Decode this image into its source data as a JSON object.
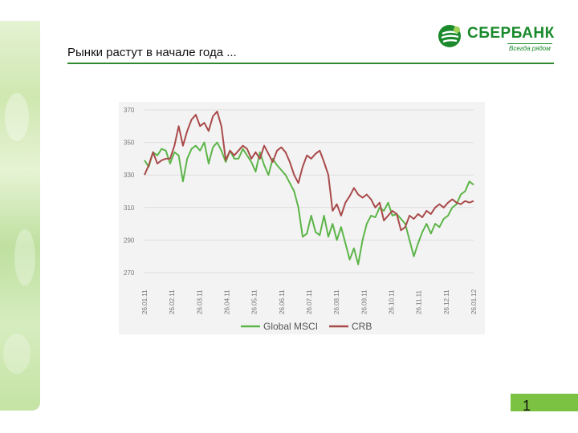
{
  "slide": {
    "title": "Рынки растут в начале года ...",
    "page_number": "1"
  },
  "logo": {
    "name": "СБЕРБАНК",
    "slogan": "Всегда рядом",
    "icon": "sberbank-logo-icon"
  },
  "colors": {
    "accent_green": "#1a8a2c",
    "page_badge": "#7cc242",
    "series_green": "#5cb548",
    "series_red": "#a94a4a"
  },
  "chart_data": {
    "type": "line",
    "title": "",
    "xlabel": "",
    "ylabel": "",
    "ylim": [
      270,
      370
    ],
    "yticks": [
      270,
      290,
      310,
      330,
      350,
      370
    ],
    "x_tick_labels": [
      "26.01.11",
      "26.02.11",
      "26.03.11",
      "26.04.11",
      "26.05.11",
      "26.06.11",
      "26.07.11",
      "26.08.11",
      "26.09.11",
      "26.10.11",
      "26.11.11",
      "26.12.11",
      "26.01.12"
    ],
    "grid": true,
    "legend_position": "bottom",
    "series": [
      {
        "name": "Global MSCI",
        "color": "#5cb548",
        "values": [
          339,
          335,
          344,
          342,
          346,
          345,
          337,
          344,
          342,
          326,
          340,
          346,
          348,
          345,
          350,
          337,
          347,
          350,
          345,
          338,
          345,
          340,
          340,
          346,
          342,
          338,
          332,
          344,
          336,
          330,
          340,
          336,
          333,
          330,
          325,
          320,
          310,
          292,
          294,
          305,
          295,
          293,
          305,
          292,
          300,
          290,
          298,
          288,
          278,
          285,
          275,
          290,
          300,
          305,
          304,
          310,
          308,
          313,
          305,
          306,
          303,
          300,
          290,
          280,
          288,
          295,
          300,
          294,
          300,
          298,
          303,
          305,
          310,
          312,
          318,
          320,
          326,
          324
        ]
      },
      {
        "name": "CRB",
        "color": "#a94a4a",
        "values": [
          330,
          336,
          344,
          337,
          339,
          340,
          340,
          348,
          360,
          348,
          357,
          364,
          367,
          360,
          362,
          357,
          366,
          369,
          360,
          339,
          345,
          342,
          345,
          348,
          346,
          340,
          344,
          340,
          348,
          343,
          338,
          345,
          347,
          344,
          338,
          330,
          325,
          335,
          342,
          340,
          343,
          345,
          338,
          330,
          308,
          312,
          305,
          313,
          317,
          322,
          318,
          316,
          318,
          315,
          310,
          313,
          302,
          305,
          308,
          306,
          296,
          298,
          305,
          303,
          306,
          304,
          308,
          306,
          310,
          312,
          310,
          313,
          315,
          313,
          312,
          314,
          313,
          314
        ]
      }
    ]
  }
}
